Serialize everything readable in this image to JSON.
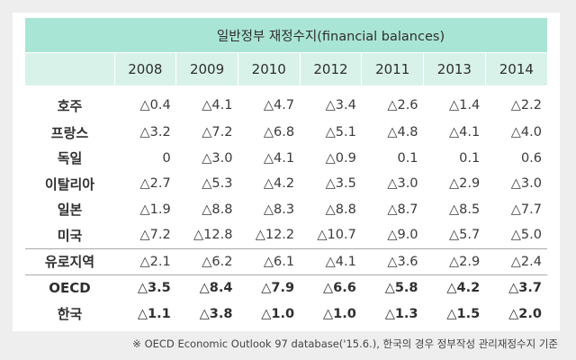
{
  "table": {
    "group_header": "일반정부 재정수지(financial balances)",
    "years": [
      "2008",
      "2009",
      "2010",
      "2012",
      "2011",
      "2013",
      "2014"
    ],
    "rows": [
      {
        "label": "호주",
        "values": [
          "△0.4",
          "△4.1",
          "△4.7",
          "△3.4",
          "△2.6",
          "△1.4",
          "△2.2"
        ]
      },
      {
        "label": "프랑스",
        "values": [
          "△3.2",
          "△7.2",
          "△6.8",
          "△5.1",
          "△4.8",
          "△4.1",
          "△4.0"
        ]
      },
      {
        "label": "독일",
        "values": [
          "0",
          "△3.0",
          "△4.1",
          "△0.9",
          "0.1",
          "0.1",
          "0.6"
        ]
      },
      {
        "label": "이탈리아",
        "values": [
          "△2.7",
          "△5.3",
          "△4.2",
          "△3.5",
          "△3.0",
          "△2.9",
          "△3.0"
        ]
      },
      {
        "label": "일본",
        "values": [
          "△1.9",
          "△8.8",
          "△8.3",
          "△8.8",
          "△8.7",
          "△8.5",
          "△7.7"
        ]
      },
      {
        "label": "미국",
        "values": [
          "△7.2",
          "△12.8",
          "△12.2",
          "△10.7",
          "△9.0",
          "△5.7",
          "△5.0"
        ]
      },
      {
        "label": "유로지역",
        "values": [
          "△2.1",
          "△6.2",
          "△6.1",
          "△4.1",
          "△3.6",
          "△2.9",
          "△2.4"
        ]
      },
      {
        "label": "OECD",
        "values": [
          "△3.5",
          "△8.4",
          "△7.9",
          "△6.6",
          "△5.8",
          "△4.2",
          "△3.7"
        ]
      },
      {
        "label": "한국",
        "values": [
          "△1.1",
          "△3.8",
          "△1.0",
          "△1.0",
          "△1.3",
          "△1.5",
          "△2.0"
        ]
      }
    ]
  },
  "note": "※ OECD Economic Outlook 97 database('15.6.), 한국의 경우 정부작성 관리재정수지 기준",
  "colors": {
    "header_dark": "#a9e5d4",
    "header_light": "#d8f2ea",
    "frame": "#eeeeee"
  }
}
